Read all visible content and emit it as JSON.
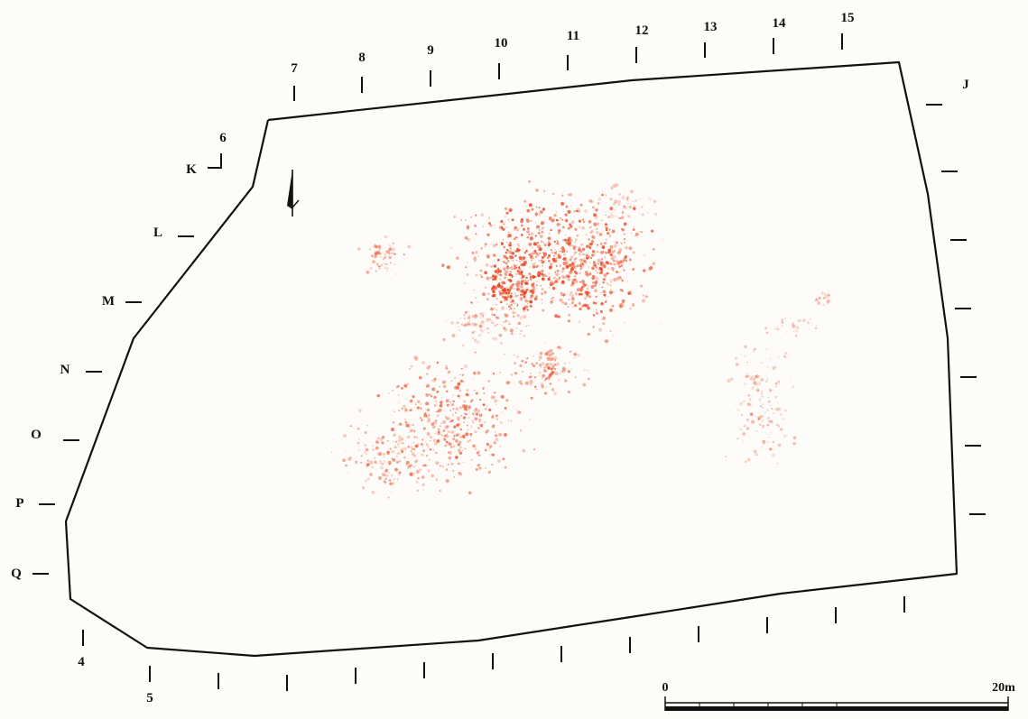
{
  "map": {
    "grid_columns_top": [
      "7",
      "8",
      "9",
      "10",
      "11",
      "12",
      "13",
      "14",
      "15"
    ],
    "grid_columns_bottom": [
      "4",
      "5"
    ],
    "grid_rows_left": [
      "K",
      "L",
      "M",
      "N",
      "O",
      "P",
      "Q"
    ],
    "grid_row_right": "J",
    "corner_column": "6",
    "scale": {
      "start": "0",
      "end": "20m"
    },
    "colors": {
      "boundary": "#111111",
      "artifact_scatter": "#e8401c",
      "background": "#fdfcf8"
    },
    "icons": {
      "north_arrow": "north-arrow-icon"
    }
  }
}
